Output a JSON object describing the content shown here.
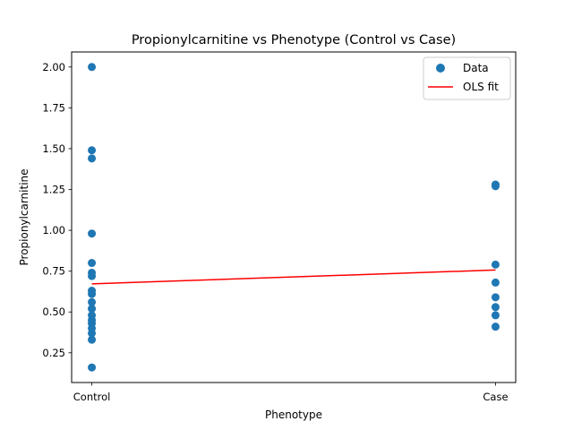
{
  "chart_data": {
    "type": "scatter",
    "title": "Propionylcarnitine vs Phenotype (Control vs Case)",
    "xlabel": "Phenotype",
    "ylabel": "Propionylcarnitine",
    "x_categories": [
      "Control",
      "Case"
    ],
    "xlim": [
      -0.05,
      1.05
    ],
    "ylim": [
      0.068,
      2.092
    ],
    "y_ticks": [
      0.25,
      0.5,
      0.75,
      1.0,
      1.25,
      1.5,
      1.75,
      2.0
    ],
    "y_tick_labels": [
      "0.25",
      "0.50",
      "0.75",
      "1.00",
      "1.25",
      "1.50",
      "1.75",
      "2.00"
    ],
    "grid": false,
    "legend_position": "top-right",
    "series": [
      {
        "name": "Data",
        "kind": "points",
        "color": "#1f77b4",
        "points": [
          {
            "x": 0,
            "y": 2.0
          },
          {
            "x": 0,
            "y": 1.49
          },
          {
            "x": 0,
            "y": 1.44
          },
          {
            "x": 0,
            "y": 0.98
          },
          {
            "x": 0,
            "y": 0.8
          },
          {
            "x": 0,
            "y": 0.74
          },
          {
            "x": 0,
            "y": 0.72
          },
          {
            "x": 0,
            "y": 0.63
          },
          {
            "x": 0,
            "y": 0.61
          },
          {
            "x": 0,
            "y": 0.56
          },
          {
            "x": 0,
            "y": 0.52
          },
          {
            "x": 0,
            "y": 0.48
          },
          {
            "x": 0,
            "y": 0.45
          },
          {
            "x": 0,
            "y": 0.43
          },
          {
            "x": 0,
            "y": 0.4
          },
          {
            "x": 0,
            "y": 0.37
          },
          {
            "x": 0,
            "y": 0.33
          },
          {
            "x": 0,
            "y": 0.16
          },
          {
            "x": 1,
            "y": 1.28
          },
          {
            "x": 1,
            "y": 1.27
          },
          {
            "x": 1,
            "y": 0.79
          },
          {
            "x": 1,
            "y": 0.68
          },
          {
            "x": 1,
            "y": 0.59
          },
          {
            "x": 1,
            "y": 0.53
          },
          {
            "x": 1,
            "y": 0.48
          },
          {
            "x": 1,
            "y": 0.41
          }
        ]
      },
      {
        "name": "OLS fit",
        "kind": "line",
        "color": "#ff0000",
        "points": [
          {
            "x": 0,
            "y": 0.672
          },
          {
            "x": 1,
            "y": 0.757
          }
        ]
      }
    ]
  }
}
